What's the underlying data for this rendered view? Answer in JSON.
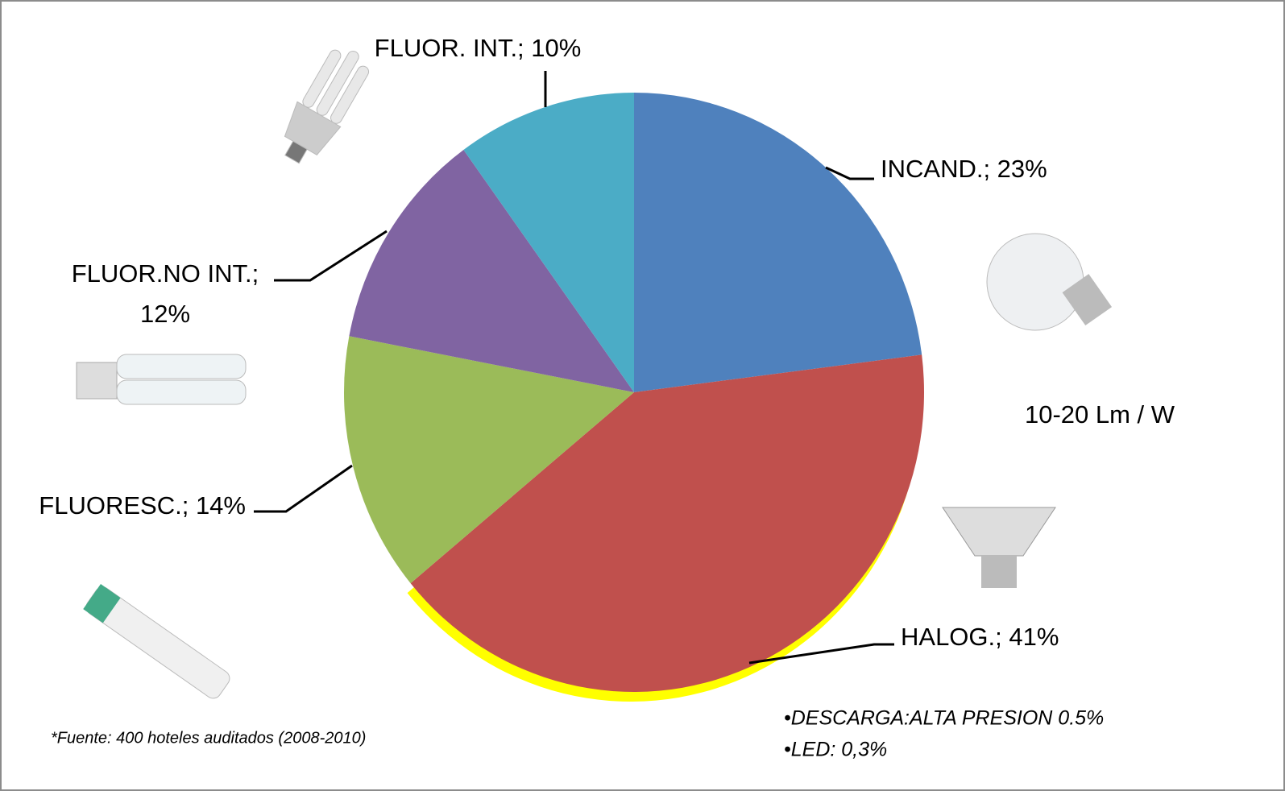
{
  "chart_data": {
    "type": "pie",
    "values": [
      23,
      41,
      14,
      12,
      10
    ],
    "value_labels": [
      "INCAND.; 23%",
      "HALOG.; 41%",
      "FLUORESC.; 14%",
      "FLUOR.NO INT.; 12%",
      "FLUOR. INT.; 10%"
    ],
    "colors": [
      "#4f81bd",
      "#c0504d",
      "#9bbb59",
      "#8064a2",
      "#4bacc6"
    ],
    "annotations": [
      "10-20 Lm / W",
      "*Fuente: 400 hoteles auditados (2008-2010)",
      "•DESCARGA:ALTA PRESION 0.5%",
      "•LED: 0,3%"
    ]
  }
}
